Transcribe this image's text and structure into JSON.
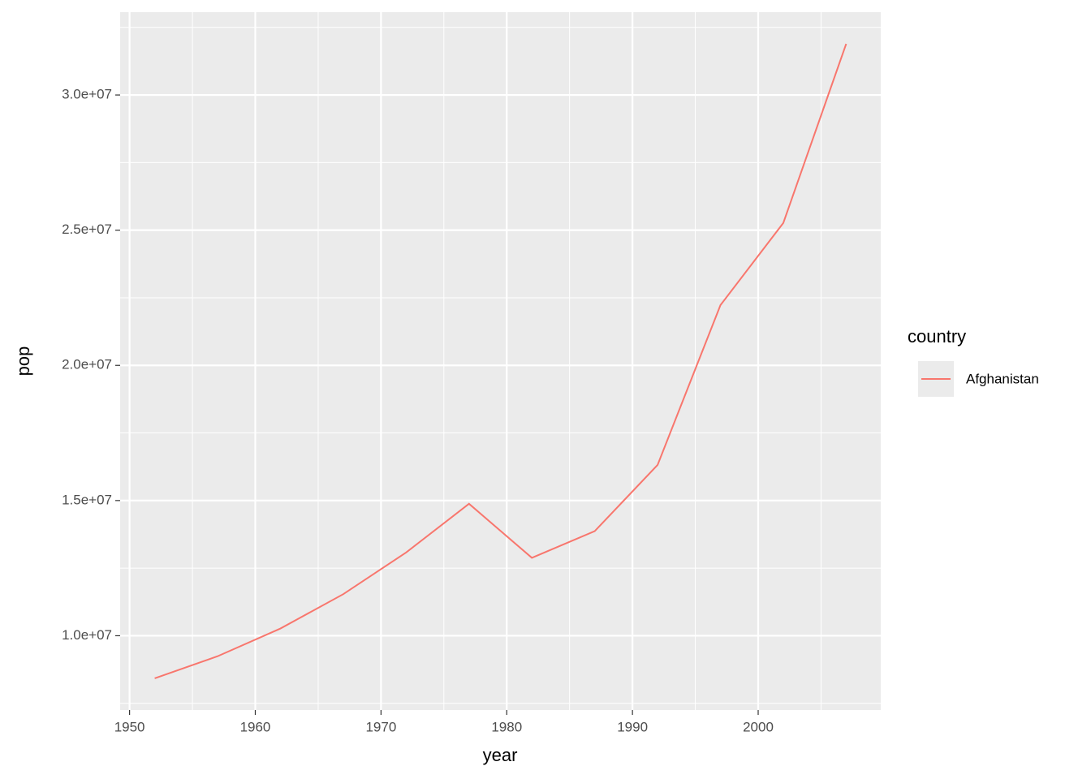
{
  "chart_data": {
    "type": "line",
    "x_label": "year",
    "y_label": "pop",
    "x": [
      1952,
      1957,
      1962,
      1967,
      1972,
      1977,
      1982,
      1987,
      1992,
      1997,
      2002,
      2007
    ],
    "series": [
      {
        "name": "Afghanistan",
        "color": "#F8766D",
        "values": [
          8425333,
          9240934,
          10267083,
          11537966,
          13079460,
          14880372,
          12881816,
          13867957,
          16317921,
          22227415,
          25268405,
          31889923
        ]
      }
    ],
    "legend_title": "country",
    "legend": "right",
    "xlim": [
      1949.25,
      2009.75
    ],
    "xticks": [
      1950,
      1960,
      1970,
      1980,
      1990,
      2000
    ],
    "ylim": [
      7252103,
      33063153
    ],
    "yticks": [
      {
        "value": 10000000,
        "label": "1.0e+07"
      },
      {
        "value": 15000000,
        "label": "1.5e+07"
      },
      {
        "value": 20000000,
        "label": "2.0e+07"
      },
      {
        "value": 25000000,
        "label": "2.5e+07"
      },
      {
        "value": 30000000,
        "label": "3.0e+07"
      }
    ],
    "grid": true
  }
}
